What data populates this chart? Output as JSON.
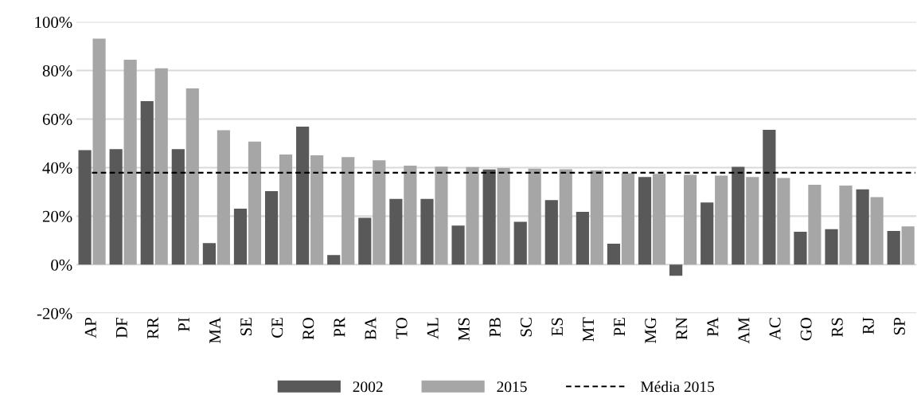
{
  "chart_data": {
    "type": "bar",
    "categories": [
      "AP",
      "DF",
      "RR",
      "PI",
      "MA",
      "SE",
      "CE",
      "RO",
      "PR",
      "BA",
      "TO",
      "AL",
      "MS",
      "PB",
      "SC",
      "ES",
      "MT",
      "PE",
      "MG",
      "RN",
      "PA",
      "AM",
      "AC",
      "GO",
      "RS",
      "RJ",
      "SP"
    ],
    "series": [
      {
        "name": "2002",
        "color": "#595959",
        "values": [
          47.2,
          47.6,
          67.4,
          47.6,
          8.9,
          23.1,
          30.3,
          56.9,
          4.0,
          19.3,
          27.1,
          27.1,
          16.1,
          39.2,
          17.7,
          26.6,
          21.8,
          8.6,
          36.1,
          -4.6,
          25.6,
          40.3,
          55.6,
          13.6,
          14.6,
          31.0,
          13.9
        ]
      },
      {
        "name": "2015",
        "color": "#a6a6a6",
        "values": [
          93.1,
          84.4,
          80.9,
          72.6,
          55.4,
          50.7,
          45.4,
          45.1,
          44.3,
          43.0,
          40.8,
          40.4,
          40.2,
          39.8,
          39.6,
          39.3,
          38.9,
          37.7,
          37.4,
          37.0,
          36.7,
          36.1,
          35.7,
          32.9,
          32.6,
          27.8,
          15.8
        ]
      }
    ],
    "ref_lines": [
      {
        "axis": "y",
        "value": 37.9,
        "label": "Média 2015",
        "color": "#000000",
        "line_style": "dashed"
      }
    ],
    "ylim": [
      -20,
      100
    ],
    "yticks": [
      {
        "value": -20,
        "label": "-20%"
      },
      {
        "value": 0,
        "label": "0%"
      },
      {
        "value": 20,
        "label": "20%"
      },
      {
        "value": 40,
        "label": "40%"
      },
      {
        "value": 60,
        "label": "60%"
      },
      {
        "value": 80,
        "label": "80%"
      },
      {
        "value": 100,
        "label": "100%"
      }
    ],
    "grid": "y",
    "legend": "bottom"
  }
}
